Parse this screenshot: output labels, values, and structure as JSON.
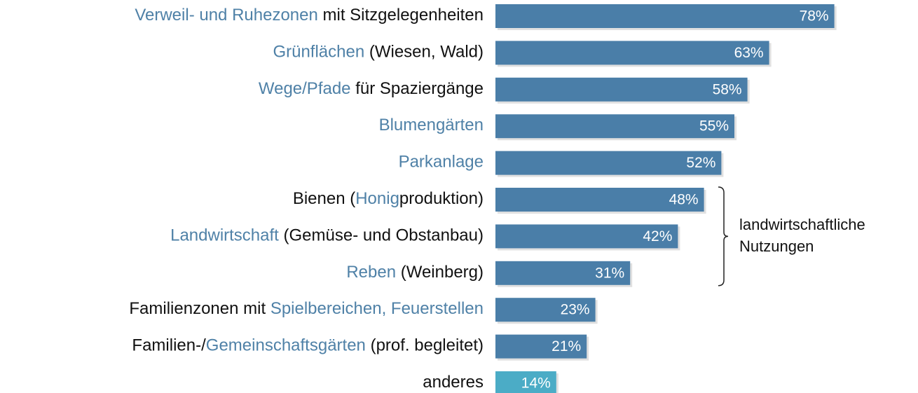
{
  "chart_data": {
    "type": "hbar",
    "categories": [
      [
        {
          "text": "Verweil- und Ruhezonen",
          "highlight": true
        },
        {
          "text": " mit Sitzgelegenheiten",
          "highlight": false
        }
      ],
      [
        {
          "text": "Grünflächen",
          "highlight": true
        },
        {
          "text": " (Wiesen, Wald)",
          "highlight": false
        }
      ],
      [
        {
          "text": "Wege/Pfade",
          "highlight": true
        },
        {
          "text": " für Spaziergänge",
          "highlight": false
        }
      ],
      [
        {
          "text": "Blumengärten",
          "highlight": true
        }
      ],
      [
        {
          "text": "Parkanlage",
          "highlight": true
        }
      ],
      [
        {
          "text": "Bienen (",
          "highlight": false
        },
        {
          "text": "Honig",
          "highlight": true
        },
        {
          "text": "produktion)",
          "highlight": false
        }
      ],
      [
        {
          "text": "Landwirtschaft",
          "highlight": true
        },
        {
          "text": " (Gemüse- und Obstanbau)",
          "highlight": false
        }
      ],
      [
        {
          "text": "Reben",
          "highlight": true
        },
        {
          "text": " (Weinberg)",
          "highlight": false
        }
      ],
      [
        {
          "text": "Familienzonen mit ",
          "highlight": false
        },
        {
          "text": "Spielbereichen, Feuerstellen",
          "highlight": true
        }
      ],
      [
        {
          "text": "Familien-/",
          "highlight": false
        },
        {
          "text": "Gemeinschaftsgärten",
          "highlight": true
        },
        {
          "text": " (prof. begleitet)",
          "highlight": false
        }
      ],
      [
        {
          "text": "anderes",
          "highlight": false
        }
      ]
    ],
    "values": [
      78,
      63,
      58,
      55,
      52,
      48,
      42,
      31,
      23,
      21,
      14
    ],
    "value_labels": [
      "78%",
      "63%",
      "58%",
      "55%",
      "52%",
      "48%",
      "42%",
      "31%",
      "23%",
      "21%",
      "14%"
    ],
    "colors": [
      "#4a7ea8",
      "#4a7ea8",
      "#4a7ea8",
      "#4a7ea8",
      "#4a7ea8",
      "#4a7ea8",
      "#4a7ea8",
      "#4a7ea8",
      "#4a7ea8",
      "#4a7ea8",
      "#4bacc6"
    ],
    "highlight_color": "#4f81a7",
    "xlim": [
      0,
      100
    ],
    "annotation": {
      "lines": [
        "landwirtschaftliche",
        "Nutzungen"
      ],
      "rows": [
        5,
        7
      ]
    }
  }
}
